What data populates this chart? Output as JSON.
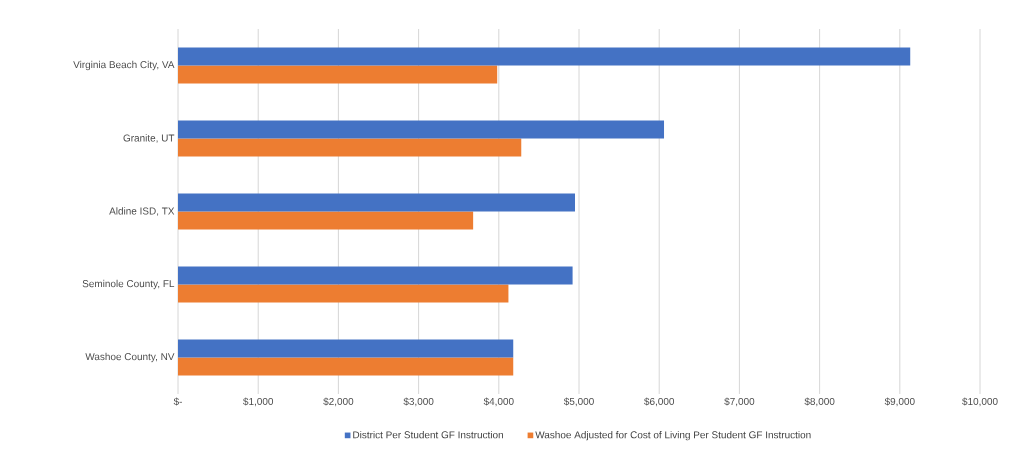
{
  "chart_data": {
    "type": "bar",
    "orientation": "horizontal",
    "categories": [
      "Virginia Beach City, VA",
      "Granite, UT",
      "Aldine ISD, TX",
      "Seminole County, FL",
      "Washoe County, NV"
    ],
    "series": [
      {
        "name": "District Per Student GF Instruction",
        "color": "#4472c4",
        "values": [
          9130,
          6060,
          4950,
          4920,
          4180
        ]
      },
      {
        "name": "Washoe Adjusted for Cost of Living Per Student GF Instruction",
        "color": "#ed7d31",
        "values": [
          3980,
          4280,
          3680,
          4120,
          4180
        ]
      }
    ],
    "xlim": [
      0,
      10000
    ],
    "xticks": [
      {
        "value": 0,
        "label": "$-"
      },
      {
        "value": 1000,
        "label": "$1,000"
      },
      {
        "value": 2000,
        "label": "$2,000"
      },
      {
        "value": 3000,
        "label": "$3,000"
      },
      {
        "value": 4000,
        "label": "$4,000"
      },
      {
        "value": 5000,
        "label": "$5,000"
      },
      {
        "value": 6000,
        "label": "$6,000"
      },
      {
        "value": 7000,
        "label": "$7,000"
      },
      {
        "value": 8000,
        "label": "$8,000"
      },
      {
        "value": 9000,
        "label": "$9,000"
      },
      {
        "value": 10000,
        "label": "$10,000"
      }
    ],
    "grid": "x",
    "legend": "bottom"
  }
}
